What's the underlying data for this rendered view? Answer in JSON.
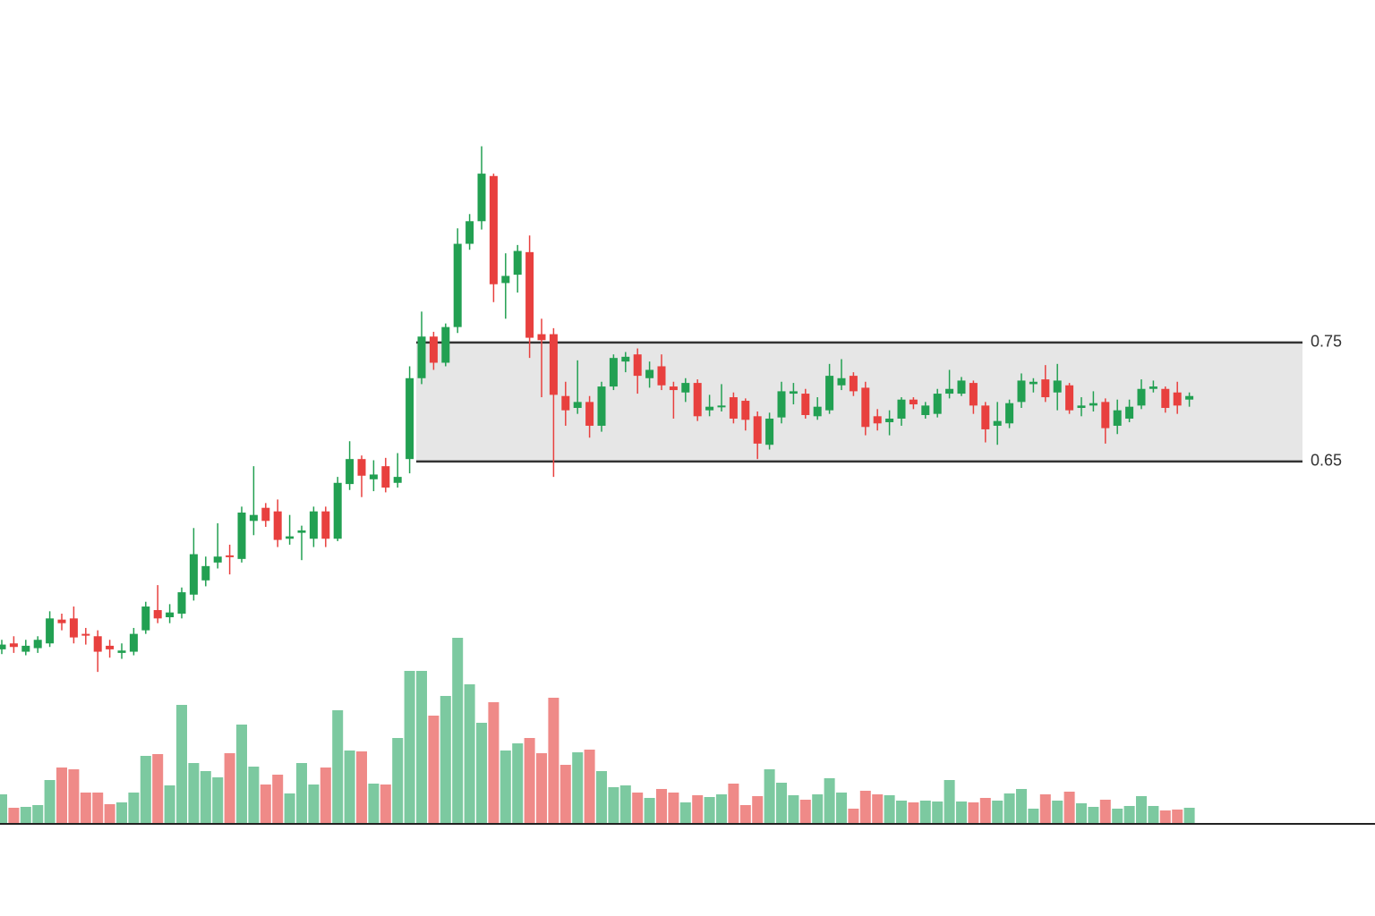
{
  "chart_data": {
    "type": "candlestick",
    "open": [
      0.492,
      0.497,
      0.49,
      0.493,
      0.497,
      0.517,
      0.518,
      0.505,
      0.503,
      0.495,
      0.489,
      0.49,
      0.508,
      0.525,
      0.519,
      0.522,
      0.538,
      0.55,
      0.565,
      0.571,
      0.568,
      0.6,
      0.611,
      0.608,
      0.585,
      0.59,
      0.585,
      0.608,
      0.585,
      0.631,
      0.652,
      0.635,
      0.646,
      0.632,
      0.652,
      0.72,
      0.755,
      0.733,
      0.763,
      0.833,
      0.852,
      0.89,
      0.8,
      0.807,
      0.826,
      0.757,
      0.757,
      0.705,
      0.695,
      0.7,
      0.68,
      0.713,
      0.734,
      0.74,
      0.72,
      0.73,
      0.713,
      0.708,
      0.716,
      0.693,
      0.696,
      0.704,
      0.701,
      0.688,
      0.664,
      0.687,
      0.707,
      0.707,
      0.688,
      0.693,
      0.714,
      0.722,
      0.712,
      0.688,
      0.683,
      0.686,
      0.702,
      0.689,
      0.69,
      0.707,
      0.707,
      0.716,
      0.697,
      0.68,
      0.682,
      0.7,
      0.715,
      0.719,
      0.708,
      0.714,
      0.695,
      0.697,
      0.7,
      0.68,
      0.686,
      0.697,
      0.711,
      0.711,
      0.708,
      0.702
    ],
    "high": [
      0.5,
      0.503,
      0.5,
      0.503,
      0.524,
      0.522,
      0.528,
      0.51,
      0.508,
      0.5,
      0.497,
      0.51,
      0.532,
      0.546,
      0.53,
      0.544,
      0.594,
      0.57,
      0.598,
      0.58,
      0.612,
      0.646,
      0.615,
      0.618,
      0.605,
      0.596,
      0.612,
      0.612,
      0.637,
      0.667,
      0.655,
      0.651,
      0.653,
      0.657,
      0.73,
      0.776,
      0.759,
      0.766,
      0.846,
      0.858,
      0.915,
      0.892,
      0.825,
      0.832,
      0.84,
      0.77,
      0.762,
      0.717,
      0.735,
      0.705,
      0.717,
      0.74,
      0.742,
      0.745,
      0.734,
      0.74,
      0.717,
      0.72,
      0.719,
      0.706,
      0.715,
      0.708,
      0.703,
      0.692,
      0.691,
      0.717,
      0.716,
      0.711,
      0.704,
      0.732,
      0.736,
      0.725,
      0.717,
      0.694,
      0.693,
      0.704,
      0.704,
      0.7,
      0.711,
      0.727,
      0.721,
      0.718,
      0.7,
      0.7,
      0.702,
      0.724,
      0.72,
      0.731,
      0.732,
      0.716,
      0.704,
      0.709,
      0.703,
      0.702,
      0.702,
      0.719,
      0.718,
      0.713,
      0.717,
      0.708
    ],
    "low": [
      0.488,
      0.489,
      0.487,
      0.489,
      0.494,
      0.508,
      0.497,
      0.496,
      0.473,
      0.485,
      0.484,
      0.487,
      0.505,
      0.514,
      0.514,
      0.518,
      0.533,
      0.545,
      0.56,
      0.555,
      0.565,
      0.588,
      0.595,
      0.578,
      0.58,
      0.567,
      0.578,
      0.578,
      0.583,
      0.626,
      0.62,
      0.625,
      0.624,
      0.628,
      0.64,
      0.715,
      0.727,
      0.73,
      0.758,
      0.828,
      0.845,
      0.784,
      0.77,
      0.792,
      0.737,
      0.704,
      0.637,
      0.68,
      0.69,
      0.67,
      0.675,
      0.71,
      0.725,
      0.707,
      0.712,
      0.71,
      0.686,
      0.7,
      0.684,
      0.688,
      0.692,
      0.682,
      0.676,
      0.652,
      0.66,
      0.682,
      0.698,
      0.686,
      0.685,
      0.69,
      0.71,
      0.705,
      0.672,
      0.676,
      0.672,
      0.68,
      0.694,
      0.686,
      0.687,
      0.703,
      0.705,
      0.69,
      0.666,
      0.664,
      0.678,
      0.695,
      0.708,
      0.7,
      0.693,
      0.69,
      0.688,
      0.692,
      0.665,
      0.673,
      0.683,
      0.694,
      0.708,
      0.691,
      0.69,
      0.696
    ],
    "close": [
      0.496,
      0.494,
      0.495,
      0.5,
      0.518,
      0.514,
      0.502,
      0.504,
      0.49,
      0.492,
      0.491,
      0.505,
      0.528,
      0.518,
      0.523,
      0.54,
      0.572,
      0.562,
      0.57,
      0.57,
      0.607,
      0.605,
      0.6,
      0.584,
      0.587,
      0.592,
      0.608,
      0.585,
      0.632,
      0.652,
      0.638,
      0.639,
      0.628,
      0.637,
      0.72,
      0.755,
      0.733,
      0.763,
      0.833,
      0.852,
      0.892,
      0.799,
      0.806,
      0.827,
      0.754,
      0.752,
      0.706,
      0.693,
      0.7,
      0.68,
      0.713,
      0.737,
      0.738,
      0.722,
      0.727,
      0.714,
      0.71,
      0.716,
      0.688,
      0.696,
      0.697,
      0.686,
      0.685,
      0.665,
      0.686,
      0.709,
      0.709,
      0.689,
      0.696,
      0.722,
      0.72,
      0.709,
      0.679,
      0.682,
      0.686,
      0.702,
      0.698,
      0.697,
      0.707,
      0.711,
      0.718,
      0.697,
      0.677,
      0.684,
      0.699,
      0.718,
      0.717,
      0.704,
      0.718,
      0.693,
      0.697,
      0.699,
      0.678,
      0.693,
      0.696,
      0.711,
      0.713,
      0.695,
      0.697,
      0.705
    ],
    "volume": [
      32,
      17,
      18,
      20,
      48,
      62,
      60,
      34,
      34,
      21,
      23,
      34,
      75,
      77,
      42,
      132,
      67,
      58,
      51,
      78,
      110,
      63,
      43,
      54,
      33,
      67,
      43,
      62,
      126,
      81,
      80,
      44,
      43,
      95,
      170,
      170,
      120,
      142,
      207,
      155,
      112,
      135,
      81,
      89,
      95,
      78,
      140,
      65,
      79,
      82,
      58,
      40,
      42,
      34,
      28,
      38,
      34,
      23,
      31,
      29,
      32,
      44,
      20,
      30,
      60,
      45,
      31,
      26,
      32,
      50,
      34,
      16,
      36,
      32,
      31,
      25,
      23,
      25,
      24,
      48,
      24,
      23,
      28,
      25,
      33,
      38,
      16,
      32,
      25,
      35,
      22,
      18,
      26,
      16,
      19,
      30,
      19,
      14,
      15,
      17
    ],
    "ylim": [
      0.346,
      1.038
    ],
    "yticks": [
      0.75,
      0.65
    ],
    "volume_lim": [
      0,
      300
    ],
    "up_color": "#22a052",
    "down_color": "#e8403e",
    "volume_up_color": "#7cc9a0",
    "volume_down_color": "#ef8a88",
    "range_box": true
  }
}
